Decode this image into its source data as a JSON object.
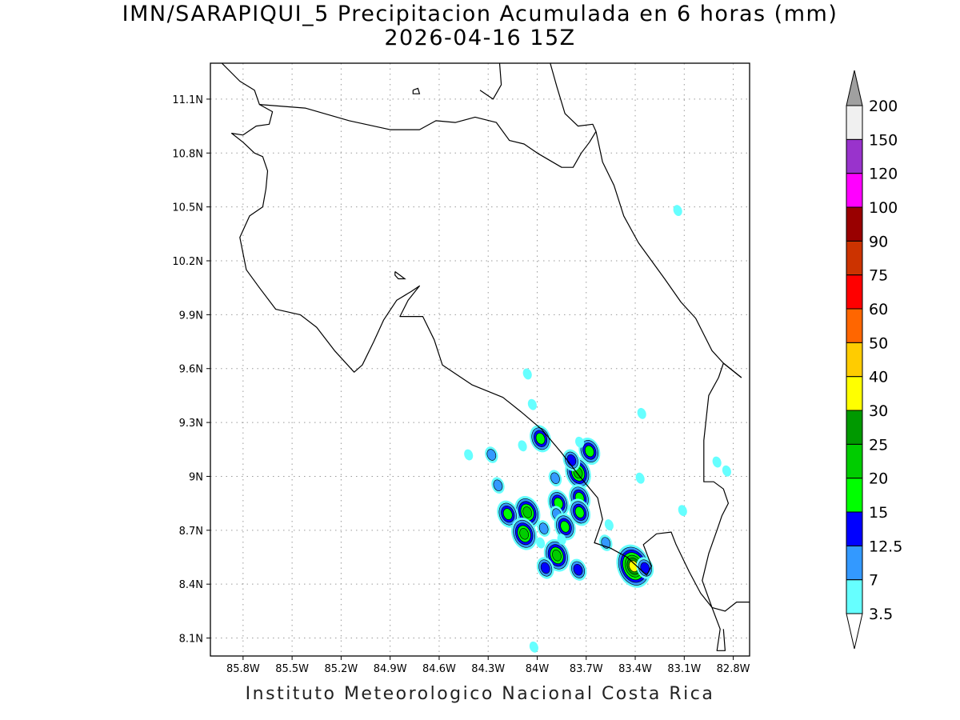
{
  "header": {
    "title": "IMN/SARAPIQUI_5 Precipitacion Acumulada en 6 horas (mm)",
    "subtitle": "2026-04-16 15Z"
  },
  "footer": {
    "credit": "Instituto Meteorologico Nacional Costa Rica"
  },
  "map": {
    "lon_range": [
      -86.0,
      -82.7
    ],
    "lat_range": [
      8.0,
      11.3
    ],
    "x_ticks": [
      {
        "v": -85.8,
        "label": "85.8W"
      },
      {
        "v": -85.5,
        "label": "85.5W"
      },
      {
        "v": -85.2,
        "label": "85.2W"
      },
      {
        "v": -84.9,
        "label": "84.9W"
      },
      {
        "v": -84.6,
        "label": "84.6W"
      },
      {
        "v": -84.3,
        "label": "84.3W"
      },
      {
        "v": -84.0,
        "label": "84W"
      },
      {
        "v": -83.7,
        "label": "83.7W"
      },
      {
        "v": -83.4,
        "label": "83.4W"
      },
      {
        "v": -83.1,
        "label": "83.1W"
      },
      {
        "v": -82.8,
        "label": "82.8W"
      }
    ],
    "y_ticks": [
      {
        "v": 8.1,
        "label": "8.1N"
      },
      {
        "v": 8.4,
        "label": "8.4N"
      },
      {
        "v": 8.7,
        "label": "8.7N"
      },
      {
        "v": 9.0,
        "label": "9N"
      },
      {
        "v": 9.3,
        "label": "9.3N"
      },
      {
        "v": 9.6,
        "label": "9.6N"
      },
      {
        "v": 9.9,
        "label": "9.9N"
      },
      {
        "v": 10.2,
        "label": "10.2N"
      },
      {
        "v": 10.5,
        "label": "10.5N"
      },
      {
        "v": 10.8,
        "label": "10.8N"
      },
      {
        "v": 11.1,
        "label": "11.1N"
      }
    ],
    "grid": true,
    "coastlines": [
      [
        [
          -85.93,
          11.3
        ],
        [
          -85.82,
          11.2
        ],
        [
          -85.73,
          11.15
        ],
        [
          -85.7,
          11.07
        ],
        [
          -85.62,
          11.03
        ],
        [
          -85.64,
          10.96
        ],
        [
          -85.72,
          10.95
        ],
        [
          -85.8,
          10.9
        ],
        [
          -85.87,
          10.91
        ],
        [
          -85.8,
          10.86
        ],
        [
          -85.73,
          10.8
        ],
        [
          -85.68,
          10.78
        ],
        [
          -85.65,
          10.7
        ],
        [
          -85.66,
          10.6
        ],
        [
          -85.68,
          10.5
        ],
        [
          -85.76,
          10.45
        ],
        [
          -85.82,
          10.33
        ],
        [
          -85.78,
          10.15
        ],
        [
          -85.7,
          10.05
        ],
        [
          -85.6,
          9.93
        ],
        [
          -85.45,
          9.9
        ],
        [
          -85.35,
          9.83
        ],
        [
          -85.24,
          9.7
        ],
        [
          -85.12,
          9.58
        ],
        [
          -85.07,
          9.62
        ],
        [
          -85.0,
          9.75
        ],
        [
          -84.94,
          9.87
        ],
        [
          -84.86,
          9.98
        ],
        [
          -84.77,
          10.03
        ],
        [
          -84.72,
          10.06
        ],
        [
          -84.79,
          9.98
        ],
        [
          -84.84,
          9.89
        ],
        [
          -84.7,
          9.89
        ],
        [
          -84.63,
          9.76
        ],
        [
          -84.58,
          9.62
        ],
        [
          -84.4,
          9.51
        ],
        [
          -84.21,
          9.44
        ],
        [
          -84.1,
          9.36
        ],
        [
          -83.97,
          9.26
        ],
        [
          -83.85,
          9.13
        ],
        [
          -83.74,
          9.0
        ],
        [
          -83.63,
          8.88
        ],
        [
          -83.6,
          8.76
        ],
        [
          -83.65,
          8.63
        ],
        [
          -83.55,
          8.6
        ],
        [
          -83.45,
          8.55
        ],
        [
          -83.33,
          8.45
        ],
        [
          -83.3,
          8.5
        ],
        [
          -83.35,
          8.62
        ],
        [
          -83.27,
          8.68
        ],
        [
          -83.18,
          8.69
        ],
        [
          -83.15,
          8.62
        ],
        [
          -83.07,
          8.47
        ],
        [
          -83.0,
          8.35
        ],
        [
          -82.93,
          8.27
        ],
        [
          -82.88,
          8.15
        ],
        [
          -82.9,
          8.03
        ],
        [
          -82.85,
          8.03
        ],
        [
          -82.86,
          8.15
        ]
      ],
      [
        [
          -82.75,
          9.55
        ],
        [
          -82.86,
          9.63
        ],
        [
          -82.89,
          9.55
        ],
        [
          -82.95,
          9.45
        ],
        [
          -82.98,
          9.2
        ],
        [
          -82.98,
          8.97
        ],
        [
          -82.92,
          8.97
        ],
        [
          -82.86,
          8.93
        ],
        [
          -82.83,
          8.85
        ],
        [
          -82.87,
          8.78
        ],
        [
          -82.9,
          8.7
        ],
        [
          -82.95,
          8.57
        ],
        [
          -82.99,
          8.42
        ],
        [
          -82.93,
          8.27
        ],
        [
          -82.85,
          8.25
        ],
        [
          -82.78,
          8.3
        ],
        [
          -82.7,
          8.3
        ]
      ],
      [
        [
          -85.7,
          11.07
        ],
        [
          -85.42,
          11.05
        ],
        [
          -85.15,
          10.98
        ],
        [
          -84.9,
          10.93
        ],
        [
          -84.72,
          10.93
        ],
        [
          -84.62,
          10.98
        ],
        [
          -84.5,
          10.97
        ],
        [
          -84.38,
          11.0
        ],
        [
          -84.25,
          10.97
        ],
        [
          -84.17,
          10.87
        ],
        [
          -84.08,
          10.85
        ],
        [
          -84.0,
          10.8
        ],
        [
          -83.85,
          10.72
        ],
        [
          -83.78,
          10.72
        ],
        [
          -83.73,
          10.8
        ],
        [
          -83.68,
          10.86
        ],
        [
          -83.64,
          10.92
        ]
      ],
      [
        [
          -83.64,
          10.92
        ],
        [
          -83.6,
          10.75
        ],
        [
          -83.53,
          10.62
        ],
        [
          -83.47,
          10.45
        ],
        [
          -83.38,
          10.3
        ],
        [
          -83.22,
          10.1
        ],
        [
          -83.12,
          9.97
        ],
        [
          -83.03,
          9.88
        ],
        [
          -82.93,
          9.7
        ],
        [
          -82.86,
          9.63
        ],
        [
          -82.75,
          9.55
        ]
      ],
      [
        [
          -83.92,
          11.3
        ],
        [
          -83.88,
          11.17
        ],
        [
          -83.83,
          11.02
        ],
        [
          -83.75,
          10.95
        ],
        [
          -83.66,
          10.96
        ],
        [
          -83.64,
          10.92
        ]
      ],
      [
        [
          -84.23,
          11.3
        ],
        [
          -84.22,
          11.18
        ],
        [
          -84.27,
          11.1
        ],
        [
          -84.35,
          11.15
        ]
      ]
    ],
    "lake": [
      [
        -84.76,
        11.15
      ],
      [
        -84.73,
        11.16
      ],
      [
        -84.72,
        11.13
      ],
      [
        -84.76,
        11.13
      ],
      [
        -84.76,
        11.15
      ]
    ],
    "islands": [
      [
        [
          -84.87,
          10.14
        ],
        [
          -84.84,
          10.12
        ],
        [
          -84.81,
          10.1
        ],
        [
          -84.85,
          10.1
        ],
        [
          -84.87,
          10.12
        ],
        [
          -84.87,
          10.14
        ]
      ]
    ]
  },
  "precipitation": {
    "unit": "mm",
    "cells": [
      {
        "lon": -83.98,
        "lat": 9.21,
        "value": 17
      },
      {
        "lon": -84.28,
        "lat": 9.12,
        "value": 8
      },
      {
        "lon": -84.42,
        "lat": 9.12,
        "value": 4
      },
      {
        "lon": -84.09,
        "lat": 9.17,
        "value": 5
      },
      {
        "lon": -83.75,
        "lat": 9.02,
        "value": 22
      },
      {
        "lon": -83.79,
        "lat": 9.09,
        "value": 13
      },
      {
        "lon": -83.68,
        "lat": 9.14,
        "value": 16
      },
      {
        "lon": -83.74,
        "lat": 9.19,
        "value": 5
      },
      {
        "lon": -83.89,
        "lat": 8.99,
        "value": 8
      },
      {
        "lon": -84.24,
        "lat": 8.95,
        "value": 8
      },
      {
        "lon": -83.74,
        "lat": 8.88,
        "value": 16
      },
      {
        "lon": -83.87,
        "lat": 8.85,
        "value": 17
      },
      {
        "lon": -83.74,
        "lat": 8.8,
        "value": 16
      },
      {
        "lon": -83.88,
        "lat": 8.79,
        "value": 8
      },
      {
        "lon": -83.83,
        "lat": 8.72,
        "value": 18
      },
      {
        "lon": -84.06,
        "lat": 8.8,
        "value": 20
      },
      {
        "lon": -84.18,
        "lat": 8.79,
        "value": 16
      },
      {
        "lon": -84.08,
        "lat": 8.68,
        "value": 21
      },
      {
        "lon": -83.96,
        "lat": 8.71,
        "value": 8
      },
      {
        "lon": -83.88,
        "lat": 8.56,
        "value": 20
      },
      {
        "lon": -83.95,
        "lat": 8.49,
        "value": 13
      },
      {
        "lon": -83.75,
        "lat": 8.48,
        "value": 13
      },
      {
        "lon": -83.58,
        "lat": 8.63,
        "value": 8
      },
      {
        "lon": -83.41,
        "lat": 8.5,
        "value": 31
      },
      {
        "lon": -83.34,
        "lat": 8.49,
        "value": 13
      },
      {
        "lon": -83.98,
        "lat": 8.63,
        "value": 4
      },
      {
        "lon": -83.85,
        "lat": 8.65,
        "value": 5
      },
      {
        "lon": -83.56,
        "lat": 8.73,
        "value": 4
      },
      {
        "lon": -83.11,
        "lat": 8.81,
        "value": 5
      },
      {
        "lon": -83.37,
        "lat": 8.99,
        "value": 4
      },
      {
        "lon": -82.9,
        "lat": 9.08,
        "value": 4
      },
      {
        "lon": -83.36,
        "lat": 9.35,
        "value": 4
      },
      {
        "lon": -83.14,
        "lat": 10.48,
        "value": 4
      },
      {
        "lon": -84.03,
        "lat": 9.4,
        "value": 4
      },
      {
        "lon": -84.06,
        "lat": 9.57,
        "value": 4
      },
      {
        "lon": -84.02,
        "lat": 8.05,
        "value": 5
      },
      {
        "lon": -82.84,
        "lat": 9.03,
        "value": 4
      }
    ]
  },
  "colorbar": {
    "levels": [
      {
        "label": "3.5",
        "value": 3.5,
        "color": "#66ffff"
      },
      {
        "label": "7",
        "value": 7,
        "color": "#3399ff"
      },
      {
        "label": "12.5",
        "value": 12.5,
        "color": "#0000ff"
      },
      {
        "label": "15",
        "value": 15,
        "color": "#00ff00"
      },
      {
        "label": "20",
        "value": 20,
        "color": "#00cc00"
      },
      {
        "label": "25",
        "value": 25,
        "color": "#009900"
      },
      {
        "label": "30",
        "value": 30,
        "color": "#ffff00"
      },
      {
        "label": "40",
        "value": 40,
        "color": "#ffcc00"
      },
      {
        "label": "50",
        "value": 50,
        "color": "#ff6600"
      },
      {
        "label": "60",
        "value": 60,
        "color": "#ff0000"
      },
      {
        "label": "75",
        "value": 75,
        "color": "#cc3300"
      },
      {
        "label": "90",
        "value": 90,
        "color": "#990000"
      },
      {
        "label": "100",
        "value": 100,
        "color": "#ff00ff"
      },
      {
        "label": "120",
        "value": 120,
        "color": "#9933cc"
      },
      {
        "label": "150",
        "value": 150,
        "color": "#f0f0f0"
      },
      {
        "label": "200",
        "value": 200,
        "color": "#a0a0a0"
      }
    ],
    "under_color": "#ffffff",
    "over_color": "#a0a0a0"
  }
}
